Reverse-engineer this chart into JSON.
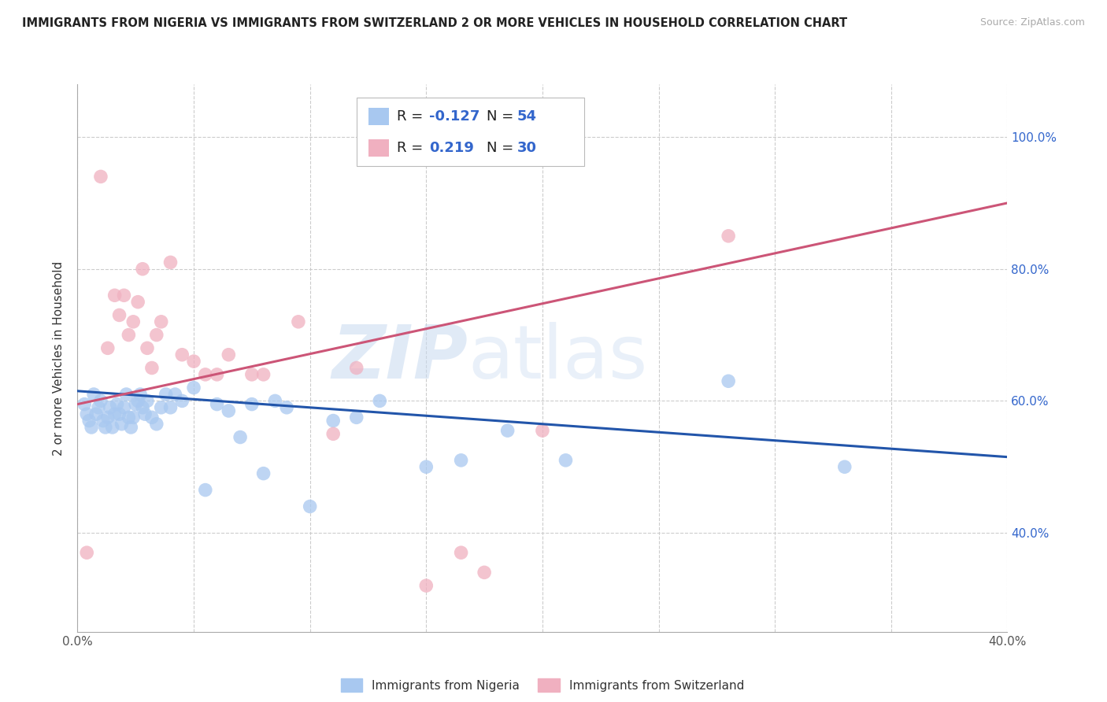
{
  "title": "IMMIGRANTS FROM NIGERIA VS IMMIGRANTS FROM SWITZERLAND 2 OR MORE VEHICLES IN HOUSEHOLD CORRELATION CHART",
  "source": "Source: ZipAtlas.com",
  "ylabel": "2 or more Vehicles in Household",
  "xlim": [
    0.0,
    0.4
  ],
  "ylim": [
    0.25,
    1.08
  ],
  "nigeria_R": -0.127,
  "nigeria_N": 54,
  "switzerland_R": 0.219,
  "switzerland_N": 30,
  "nigeria_color": "#a8c8f0",
  "switzerland_color": "#f0b0c0",
  "nigeria_line_color": "#2255aa",
  "switzerland_line_color": "#cc5577",
  "legend_labels": [
    "Immigrants from Nigeria",
    "Immigrants from Switzerland"
  ],
  "watermark_zip": "ZIP",
  "watermark_atlas": "atlas",
  "nigeria_x": [
    0.003,
    0.004,
    0.005,
    0.006,
    0.007,
    0.008,
    0.009,
    0.01,
    0.011,
    0.012,
    0.013,
    0.014,
    0.015,
    0.016,
    0.017,
    0.018,
    0.019,
    0.02,
    0.021,
    0.022,
    0.023,
    0.024,
    0.025,
    0.026,
    0.027,
    0.028,
    0.029,
    0.03,
    0.032,
    0.034,
    0.036,
    0.038,
    0.04,
    0.042,
    0.045,
    0.05,
    0.055,
    0.06,
    0.065,
    0.07,
    0.075,
    0.08,
    0.085,
    0.09,
    0.1,
    0.11,
    0.12,
    0.13,
    0.15,
    0.165,
    0.185,
    0.21,
    0.28,
    0.33
  ],
  "nigeria_y": [
    0.595,
    0.58,
    0.57,
    0.56,
    0.61,
    0.58,
    0.59,
    0.6,
    0.57,
    0.56,
    0.575,
    0.59,
    0.56,
    0.58,
    0.595,
    0.58,
    0.565,
    0.59,
    0.61,
    0.575,
    0.56,
    0.575,
    0.595,
    0.6,
    0.61,
    0.59,
    0.58,
    0.6,
    0.575,
    0.565,
    0.59,
    0.61,
    0.59,
    0.61,
    0.6,
    0.62,
    0.465,
    0.595,
    0.585,
    0.545,
    0.595,
    0.49,
    0.6,
    0.59,
    0.44,
    0.57,
    0.575,
    0.6,
    0.5,
    0.51,
    0.555,
    0.51,
    0.63,
    0.5
  ],
  "switzerland_x": [
    0.004,
    0.01,
    0.013,
    0.016,
    0.018,
    0.02,
    0.022,
    0.024,
    0.026,
    0.028,
    0.03,
    0.032,
    0.034,
    0.036,
    0.04,
    0.045,
    0.05,
    0.055,
    0.06,
    0.065,
    0.075,
    0.08,
    0.095,
    0.11,
    0.12,
    0.15,
    0.165,
    0.175,
    0.2,
    0.28
  ],
  "switzerland_y": [
    0.37,
    0.94,
    0.68,
    0.76,
    0.73,
    0.76,
    0.7,
    0.72,
    0.75,
    0.8,
    0.68,
    0.65,
    0.7,
    0.72,
    0.81,
    0.67,
    0.66,
    0.64,
    0.64,
    0.67,
    0.64,
    0.64,
    0.72,
    0.55,
    0.65,
    0.32,
    0.37,
    0.34,
    0.555,
    0.85
  ],
  "nigeria_line_x0": 0.0,
  "nigeria_line_x1": 0.4,
  "nigeria_line_y0": 0.615,
  "nigeria_line_y1": 0.515,
  "switzerland_line_x0": 0.0,
  "switzerland_line_x1": 0.4,
  "switzerland_line_y0": 0.595,
  "switzerland_line_y1": 0.9
}
